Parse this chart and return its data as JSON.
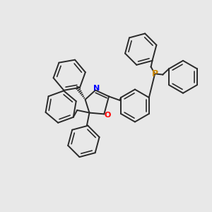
{
  "background_color": "#e8e8e8",
  "bond_color": "#2a2a2a",
  "N_color": "#0000ff",
  "O_color": "#ff0000",
  "P_color": "#cc8800",
  "bond_width": 1.4,
  "figsize": [
    3.0,
    3.0
  ],
  "dpi": 100,
  "xlim": [
    -4.5,
    5.5
  ],
  "ylim": [
    -4.5,
    4.5
  ]
}
